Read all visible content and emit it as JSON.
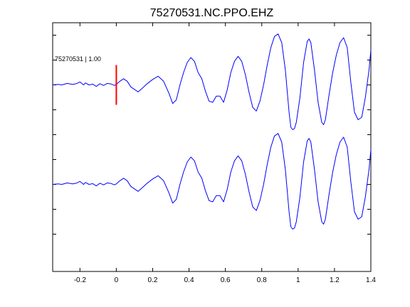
{
  "chart_data": {
    "type": "line",
    "title": "75270531.NC.PPO.EHZ",
    "xlabel": "",
    "ylabel": "",
    "xlim": [
      -0.35,
      1.4
    ],
    "x_ticks": [
      -0.2,
      0,
      0.2,
      0.4,
      0.6,
      0.8,
      1,
      1.2,
      1.4
    ],
    "x_tick_labels": [
      "-0.2",
      "0",
      "0.2",
      "0.4",
      "0.6",
      "0.8",
      "1",
      "1.2",
      "1.4"
    ],
    "ylim": [
      -0.5,
      9.5
    ],
    "y_ticks": [
      1,
      2,
      3,
      4,
      5,
      6,
      7,
      8,
      9
    ],
    "grid": false,
    "line_color": "#0000ff",
    "series": [
      {
        "baseline": 7,
        "points": [
          [
            -0.35,
            7.0
          ],
          [
            -0.32,
            7.02
          ],
          [
            -0.3,
            7.0
          ],
          [
            -0.27,
            7.06
          ],
          [
            -0.24,
            7.02
          ],
          [
            -0.22,
            7.05
          ],
          [
            -0.2,
            7.12
          ],
          [
            -0.18,
            7.0
          ],
          [
            -0.17,
            7.08
          ],
          [
            -0.15,
            7.0
          ],
          [
            -0.13,
            7.03
          ],
          [
            -0.11,
            6.94
          ],
          [
            -0.09,
            7.05
          ],
          [
            -0.07,
            6.98
          ],
          [
            -0.05,
            7.06
          ],
          [
            -0.03,
            7.04
          ],
          [
            -0.01,
            6.98
          ],
          [
            0.0,
            7.02
          ],
          [
            0.02,
            7.15
          ],
          [
            0.04,
            7.25
          ],
          [
            0.06,
            7.15
          ],
          [
            0.08,
            6.92
          ],
          [
            0.1,
            6.82
          ],
          [
            0.12,
            6.72
          ],
          [
            0.14,
            6.85
          ],
          [
            0.17,
            7.05
          ],
          [
            0.2,
            7.22
          ],
          [
            0.23,
            7.35
          ],
          [
            0.26,
            7.15
          ],
          [
            0.29,
            6.65
          ],
          [
            0.31,
            6.25
          ],
          [
            0.33,
            6.4
          ],
          [
            0.35,
            7.0
          ],
          [
            0.37,
            7.5
          ],
          [
            0.39,
            7.9
          ],
          [
            0.41,
            8.1
          ],
          [
            0.43,
            7.95
          ],
          [
            0.45,
            7.5
          ],
          [
            0.47,
            7.25
          ],
          [
            0.49,
            6.75
          ],
          [
            0.51,
            6.35
          ],
          [
            0.53,
            6.3
          ],
          [
            0.55,
            6.55
          ],
          [
            0.57,
            6.55
          ],
          [
            0.59,
            6.3
          ],
          [
            0.61,
            6.8
          ],
          [
            0.63,
            7.5
          ],
          [
            0.65,
            7.95
          ],
          [
            0.67,
            8.15
          ],
          [
            0.69,
            7.95
          ],
          [
            0.71,
            7.4
          ],
          [
            0.73,
            6.7
          ],
          [
            0.75,
            6.1
          ],
          [
            0.77,
            5.95
          ],
          [
            0.79,
            6.35
          ],
          [
            0.81,
            7.0
          ],
          [
            0.83,
            7.8
          ],
          [
            0.85,
            8.5
          ],
          [
            0.87,
            8.95
          ],
          [
            0.89,
            9.05
          ],
          [
            0.91,
            8.7
          ],
          [
            0.93,
            7.6
          ],
          [
            0.95,
            5.9
          ],
          [
            0.96,
            5.3
          ],
          [
            0.97,
            5.2
          ],
          [
            0.98,
            5.25
          ],
          [
            0.99,
            5.5
          ],
          [
            1.01,
            6.5
          ],
          [
            1.03,
            7.9
          ],
          [
            1.05,
            8.75
          ],
          [
            1.06,
            8.85
          ],
          [
            1.07,
            8.7
          ],
          [
            1.09,
            7.6
          ],
          [
            1.11,
            6.3
          ],
          [
            1.13,
            5.5
          ],
          [
            1.14,
            5.4
          ],
          [
            1.15,
            5.6
          ],
          [
            1.17,
            6.6
          ],
          [
            1.19,
            7.5
          ],
          [
            1.21,
            8.2
          ],
          [
            1.23,
            8.7
          ],
          [
            1.25,
            8.9
          ],
          [
            1.27,
            8.5
          ],
          [
            1.29,
            7.1
          ],
          [
            1.31,
            5.9
          ],
          [
            1.33,
            5.6
          ],
          [
            1.35,
            5.7
          ],
          [
            1.37,
            6.5
          ],
          [
            1.39,
            7.6
          ],
          [
            1.4,
            8.4
          ]
        ]
      },
      {
        "baseline": 3,
        "points": [
          [
            -0.35,
            3.0
          ],
          [
            -0.32,
            3.02
          ],
          [
            -0.3,
            3.0
          ],
          [
            -0.27,
            3.06
          ],
          [
            -0.24,
            3.02
          ],
          [
            -0.22,
            3.05
          ],
          [
            -0.2,
            3.12
          ],
          [
            -0.18,
            3.0
          ],
          [
            -0.17,
            3.08
          ],
          [
            -0.15,
            3.0
          ],
          [
            -0.13,
            3.03
          ],
          [
            -0.11,
            2.94
          ],
          [
            -0.09,
            3.05
          ],
          [
            -0.07,
            2.98
          ],
          [
            -0.05,
            3.06
          ],
          [
            -0.03,
            3.04
          ],
          [
            -0.01,
            2.98
          ],
          [
            0.0,
            3.02
          ],
          [
            0.02,
            3.15
          ],
          [
            0.04,
            3.25
          ],
          [
            0.06,
            3.15
          ],
          [
            0.08,
            2.92
          ],
          [
            0.1,
            2.82
          ],
          [
            0.12,
            2.72
          ],
          [
            0.14,
            2.85
          ],
          [
            0.17,
            3.05
          ],
          [
            0.2,
            3.22
          ],
          [
            0.23,
            3.35
          ],
          [
            0.26,
            3.15
          ],
          [
            0.29,
            2.65
          ],
          [
            0.31,
            2.25
          ],
          [
            0.33,
            2.4
          ],
          [
            0.35,
            3.0
          ],
          [
            0.37,
            3.5
          ],
          [
            0.39,
            3.9
          ],
          [
            0.41,
            4.1
          ],
          [
            0.43,
            3.95
          ],
          [
            0.45,
            3.5
          ],
          [
            0.47,
            3.25
          ],
          [
            0.49,
            2.75
          ],
          [
            0.51,
            2.35
          ],
          [
            0.53,
            2.3
          ],
          [
            0.55,
            2.55
          ],
          [
            0.57,
            2.55
          ],
          [
            0.59,
            2.3
          ],
          [
            0.61,
            2.8
          ],
          [
            0.63,
            3.5
          ],
          [
            0.65,
            3.95
          ],
          [
            0.67,
            4.15
          ],
          [
            0.69,
            3.95
          ],
          [
            0.71,
            3.4
          ],
          [
            0.73,
            2.7
          ],
          [
            0.75,
            2.1
          ],
          [
            0.77,
            1.95
          ],
          [
            0.79,
            2.35
          ],
          [
            0.81,
            3.0
          ],
          [
            0.83,
            3.8
          ],
          [
            0.85,
            4.5
          ],
          [
            0.87,
            4.95
          ],
          [
            0.89,
            5.05
          ],
          [
            0.91,
            4.7
          ],
          [
            0.93,
            3.6
          ],
          [
            0.95,
            1.9
          ],
          [
            0.96,
            1.3
          ],
          [
            0.97,
            1.2
          ],
          [
            0.98,
            1.25
          ],
          [
            0.99,
            1.5
          ],
          [
            1.01,
            2.5
          ],
          [
            1.03,
            3.9
          ],
          [
            1.05,
            4.75
          ],
          [
            1.06,
            4.85
          ],
          [
            1.07,
            4.7
          ],
          [
            1.09,
            3.6
          ],
          [
            1.11,
            2.3
          ],
          [
            1.13,
            1.5
          ],
          [
            1.14,
            1.4
          ],
          [
            1.15,
            1.6
          ],
          [
            1.17,
            2.6
          ],
          [
            1.19,
            3.5
          ],
          [
            1.21,
            4.2
          ],
          [
            1.23,
            4.7
          ],
          [
            1.25,
            4.9
          ],
          [
            1.27,
            4.5
          ],
          [
            1.29,
            3.1
          ],
          [
            1.31,
            1.9
          ],
          [
            1.33,
            1.6
          ],
          [
            1.35,
            1.7
          ],
          [
            1.37,
            2.5
          ],
          [
            1.39,
            3.6
          ],
          [
            1.4,
            4.4
          ]
        ]
      }
    ],
    "pick_marker": {
      "x": 0,
      "y_range": [
        6.2,
        7.8
      ],
      "color": "#ff0000"
    },
    "annotation": {
      "text": "75270531 | 1.00",
      "x": -0.35,
      "y": 8.05
    }
  }
}
